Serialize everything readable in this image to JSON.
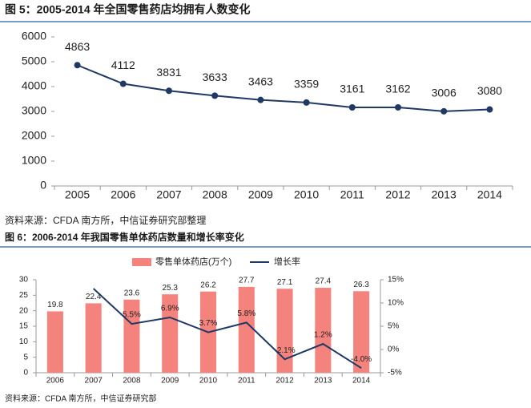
{
  "chart_data": [
    {
      "type": "line",
      "title": "图 5：2005-2014 年全国零售药店均拥有人数变化",
      "categories": [
        "2005",
        "2006",
        "2007",
        "2008",
        "2009",
        "2010",
        "2011",
        "2012",
        "2013",
        "2014"
      ],
      "values": [
        4863,
        4112,
        3831,
        3633,
        3463,
        3359,
        3161,
        3162,
        3006,
        3080
      ],
      "color": "#1f3864",
      "ylim": [
        0,
        6000
      ],
      "yticks": [
        0,
        1000,
        2000,
        3000,
        4000,
        5000,
        6000
      ],
      "source": "资料来源：CFDA 南方所，中信证券研究部整理"
    },
    {
      "type": "bar",
      "title": "图 6：2006-2014 年我国零售单体药店数量和增长率变化",
      "categories": [
        "2006",
        "2007",
        "2008",
        "2009",
        "2010",
        "2011",
        "2012",
        "2013",
        "2014"
      ],
      "series": [
        {
          "name": "零售单体药店(万个)",
          "color": "#f4837d",
          "type": "bar",
          "values": [
            19.8,
            22.4,
            23.6,
            25.3,
            26.2,
            27.7,
            27.1,
            27.4,
            26.3
          ]
        },
        {
          "name": "增长率",
          "color": "#1f3864",
          "type": "line",
          "axis": "y2",
          "values": [
            null,
            13.1,
            5.5,
            6.9,
            3.7,
            5.8,
            -2.1,
            1.2,
            -4.0
          ],
          "value_labels": [
            null,
            null,
            "5.5%",
            "6.9%",
            "3.7%",
            "5.8%",
            "-2.1%",
            "1.2%",
            "-4.0%"
          ]
        }
      ],
      "ylim": [
        0,
        30
      ],
      "yticks": [
        0,
        5,
        10,
        15,
        20,
        25,
        30
      ],
      "y2lim": [
        -5,
        15
      ],
      "y2ticks": [
        {
          "value": -5,
          "label": "-5%"
        },
        {
          "value": 0,
          "label": "0%"
        },
        {
          "value": 5,
          "label": "5%"
        },
        {
          "value": 10,
          "label": "10%"
        },
        {
          "value": 15,
          "label": "15%"
        }
      ],
      "source": "资料来源：CFDA 南方所，中信证券研究部"
    }
  ]
}
